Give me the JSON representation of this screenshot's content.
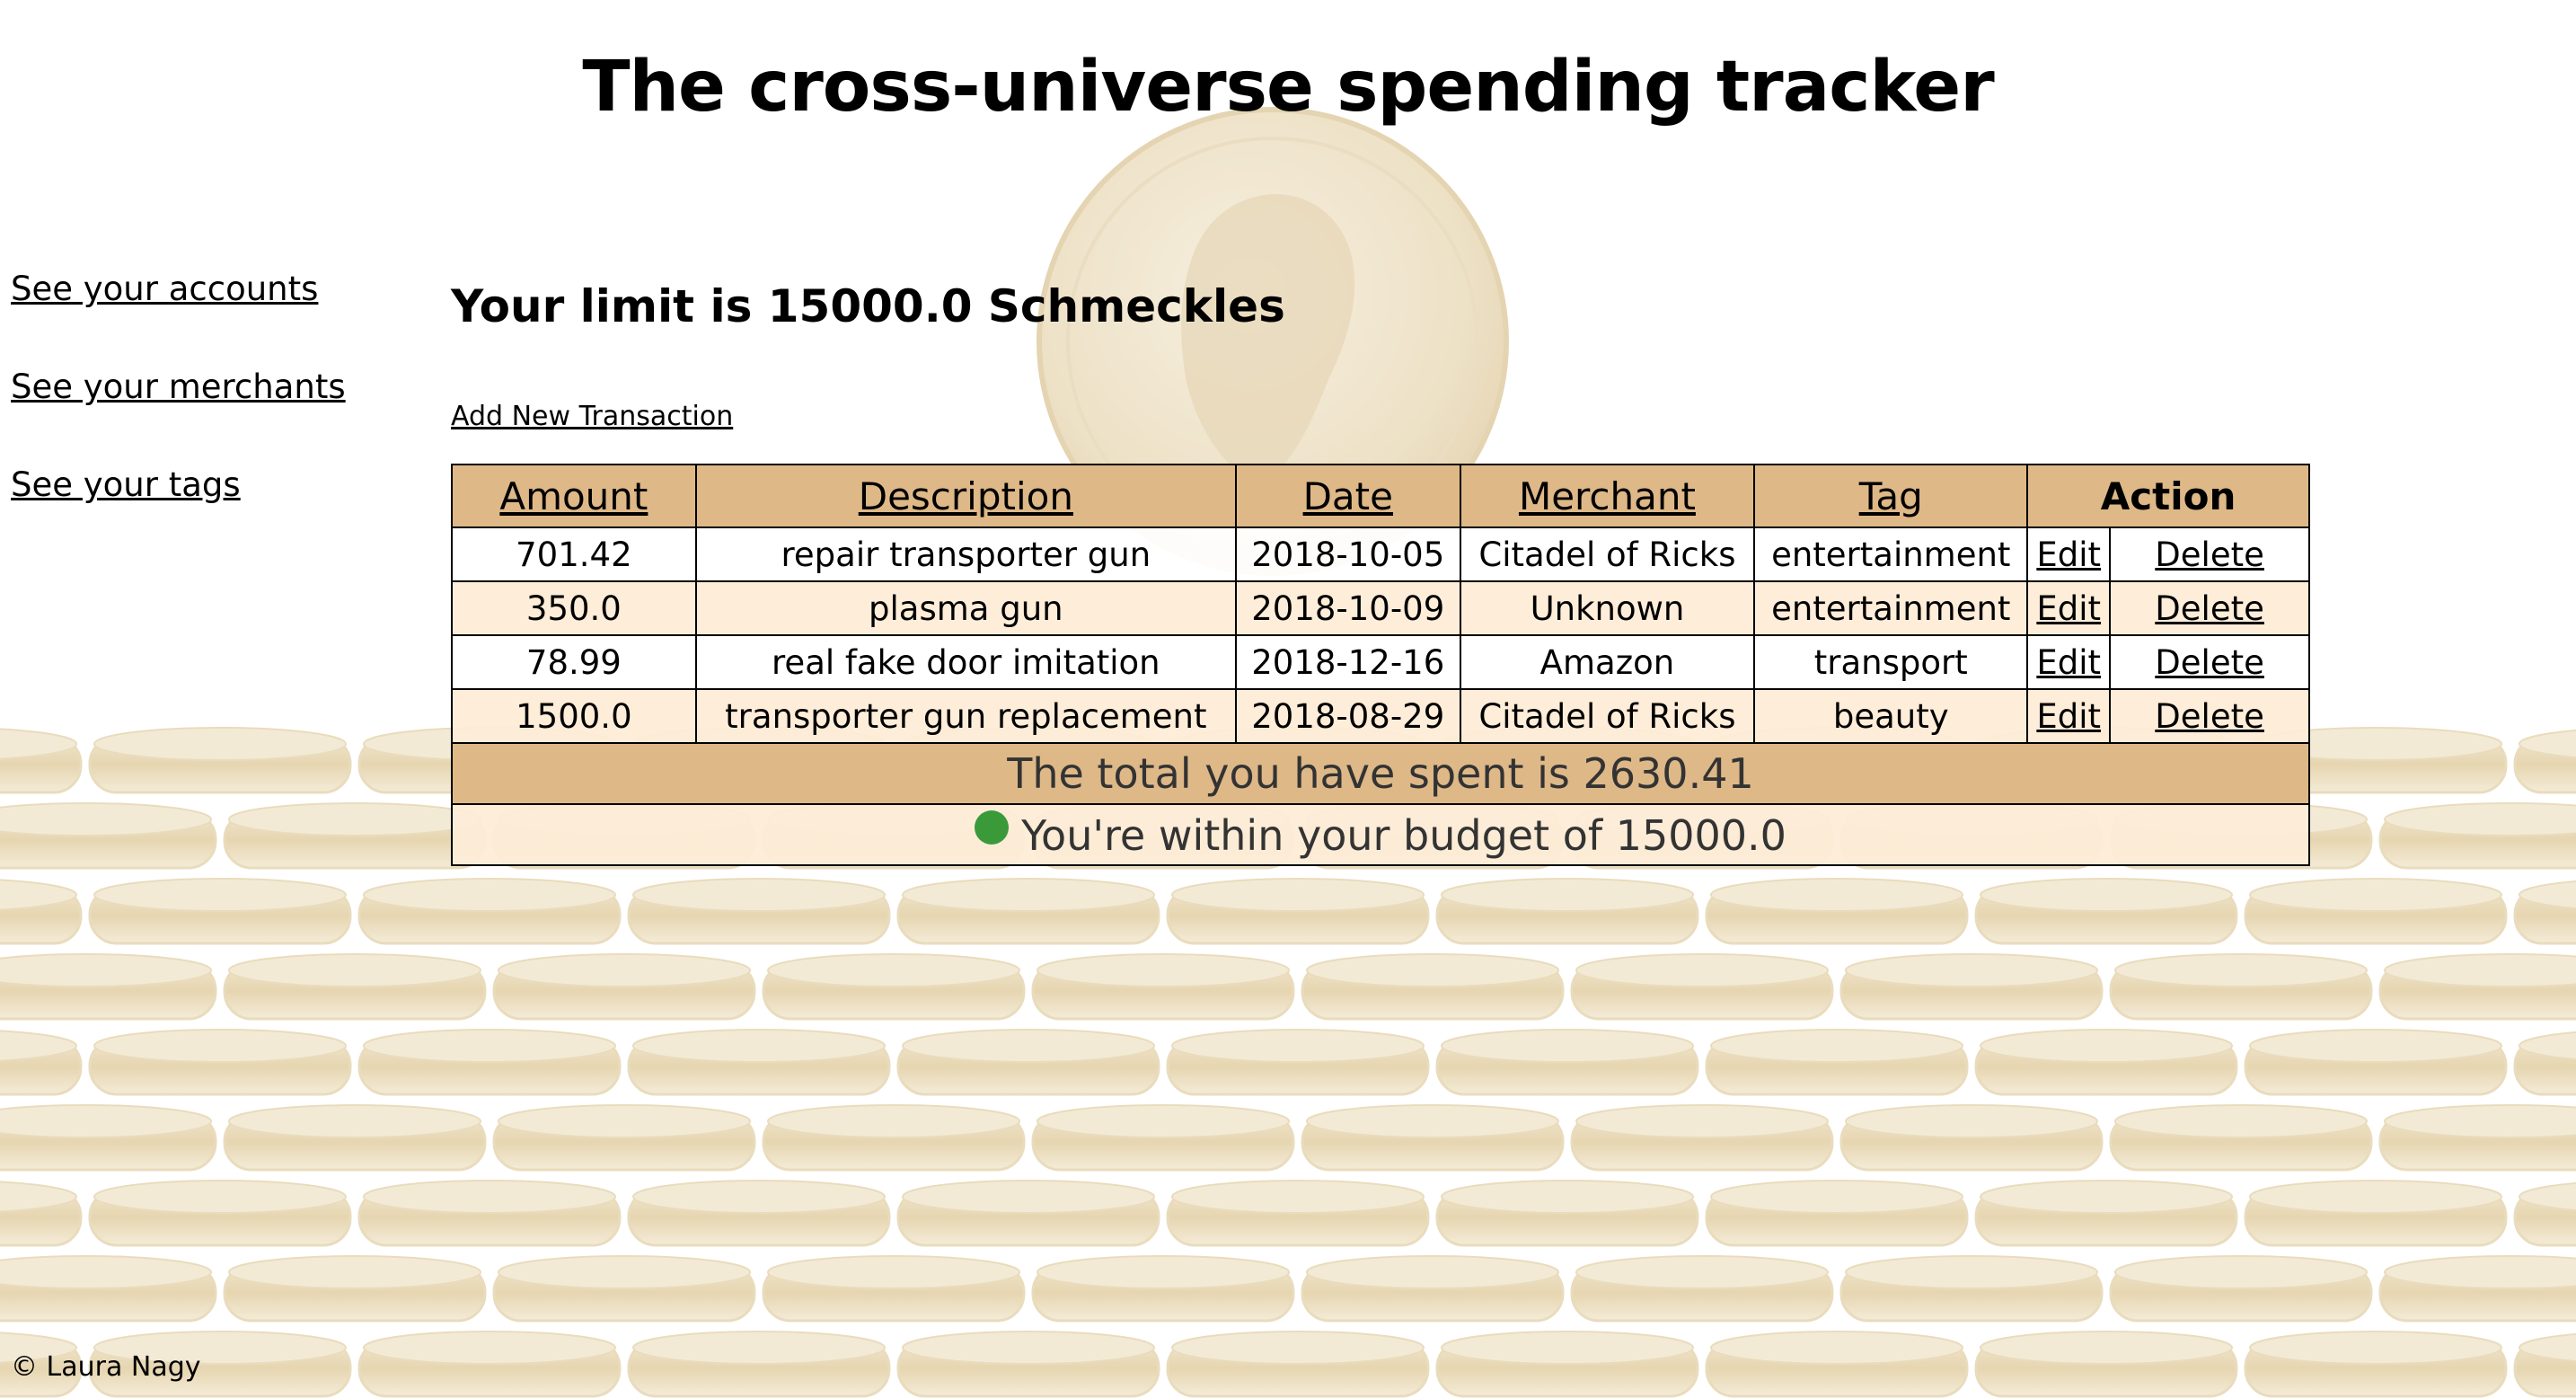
{
  "page_title": "The cross-universe spending tracker",
  "nav": {
    "accounts": "See your accounts",
    "merchants": "See your merchants",
    "tags": "See your tags"
  },
  "limit_heading": "Your limit is 15000.0 Schmeckles",
  "add_transaction": "Add New Transaction",
  "table": {
    "headers": {
      "amount": "Amount",
      "description": "Description",
      "date": "Date",
      "merchant": "Merchant",
      "tag": "Tag",
      "action": "Action"
    },
    "rows": [
      {
        "amount": "701.42",
        "description": "repair transporter gun",
        "date": "2018-10-05",
        "merchant": "Citadel of Ricks",
        "tag": "entertainment",
        "edit": "Edit",
        "delete": "Delete"
      },
      {
        "amount": "350.0",
        "description": "plasma gun",
        "date": "2018-10-09",
        "merchant": "Unknown",
        "tag": "entertainment",
        "edit": "Edit",
        "delete": "Delete"
      },
      {
        "amount": "78.99",
        "description": "real fake door imitation",
        "date": "2018-12-16",
        "merchant": "Amazon",
        "tag": "transport",
        "edit": "Edit",
        "delete": "Delete"
      },
      {
        "amount": "1500.0",
        "description": "transporter gun replacement",
        "date": "2018-08-29",
        "merchant": "Citadel of Ricks",
        "tag": "beauty",
        "edit": "Edit",
        "delete": "Delete"
      }
    ],
    "total_text": "The total you have spent is 2630.41",
    "budget_text": "You're within your budget of 15000.0"
  },
  "colors": {
    "header_bg": "#deb887",
    "row_alt_bg": "#fdecd7",
    "status_ok": "#3a9a3a"
  },
  "footer": "© Laura Nagy"
}
